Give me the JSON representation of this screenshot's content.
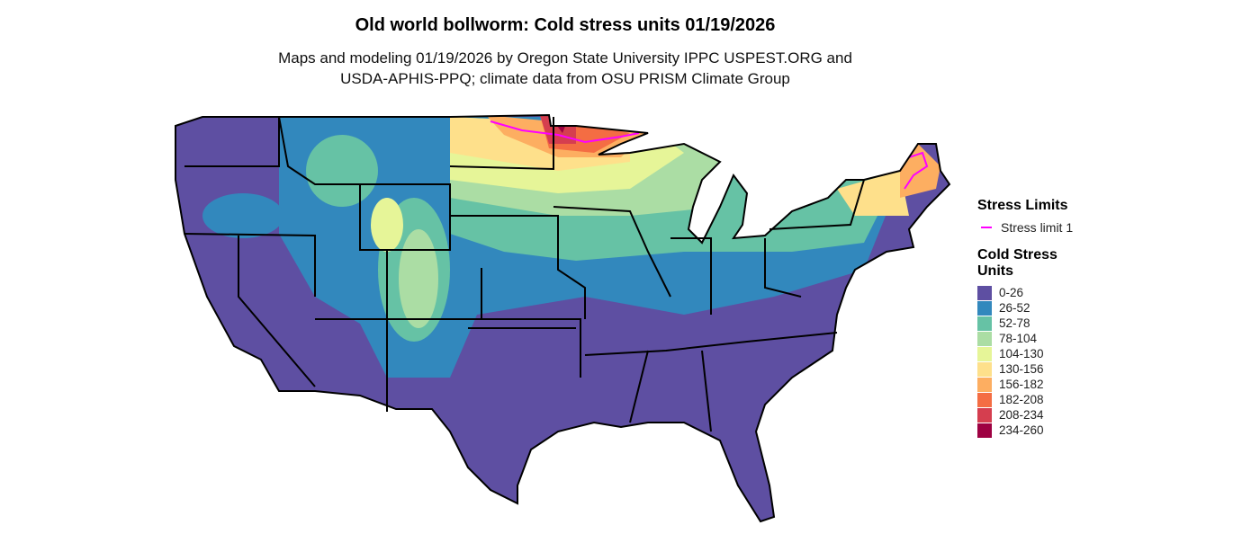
{
  "title": "Old world bollworm: Cold stress units 01/19/2026",
  "subtitle": [
    "Maps and modeling 01/19/2026 by Oregon State University IPPC USPEST.ORG and",
    "USDA-APHIS-PPQ; climate data from OSU PRISM Climate Group"
  ],
  "legend": {
    "stress_title": "Stress Limits",
    "stress_items": [
      {
        "label": "Stress limit 1",
        "color": "#ff00ff"
      }
    ],
    "units_title": "Cold Stress Units",
    "bins": [
      {
        "label": "0-26",
        "color": "#5e4fa2"
      },
      {
        "label": "26-52",
        "color": "#3288bd"
      },
      {
        "label": "52-78",
        "color": "#66c2a5"
      },
      {
        "label": "78-104",
        "color": "#abdda4"
      },
      {
        "label": "104-130",
        "color": "#e6f598"
      },
      {
        "label": "130-156",
        "color": "#fee08b"
      },
      {
        "label": "156-182",
        "color": "#fdae61"
      },
      {
        "label": "182-208",
        "color": "#f46d43"
      },
      {
        "label": "208-234",
        "color": "#d53e4f"
      },
      {
        "label": "234-260",
        "color": "#9e0142"
      }
    ]
  }
}
